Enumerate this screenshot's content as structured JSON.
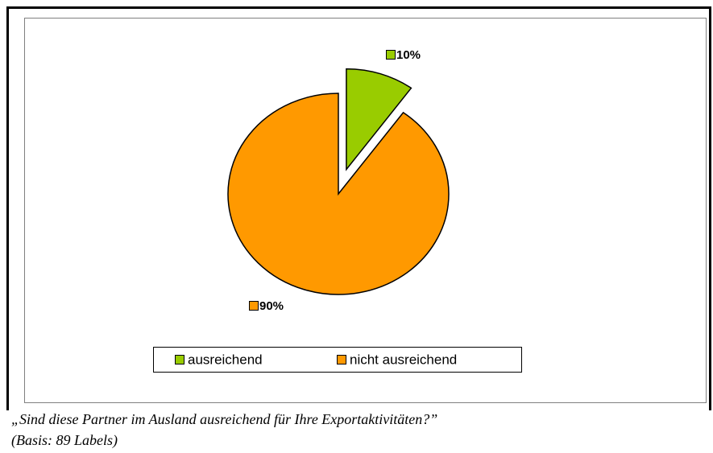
{
  "chart_data": {
    "type": "pie",
    "categories": [
      "ausreichend",
      "nicht ausreichend"
    ],
    "values": [
      10,
      90
    ],
    "value_labels": [
      "10%",
      "90%"
    ],
    "colors": [
      "#99cc00",
      "#ff9900"
    ],
    "exploded": [
      true,
      false
    ],
    "legend": "bottom",
    "caption": [
      "„Sind diese Partner im Ausland ausreichend für Ihre Exportaktivitäten?”",
      "(Basis: 89 Labels)"
    ]
  }
}
